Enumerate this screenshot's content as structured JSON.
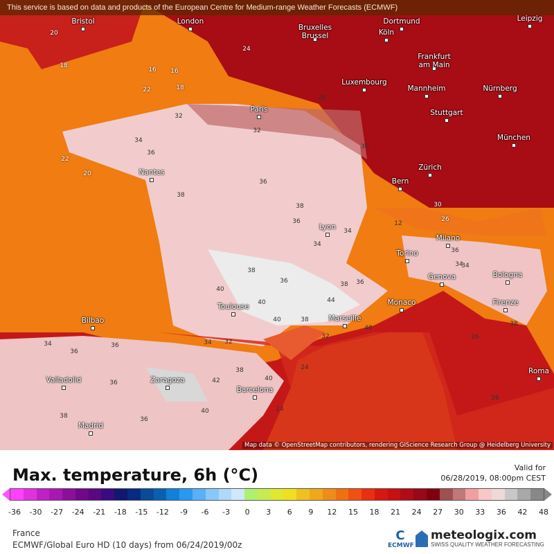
{
  "banner": "This service is based on data and products of the European Centre for Medium-range Weather Forecasts (ECMWF)",
  "cities": [
    "Bristol",
    "London",
    "Dortmund",
    "Leipzig",
    "Bruxelles\nBrussel",
    "Köln",
    "Frankfurt\nam Main",
    "Luxembourg",
    "Mannheim",
    "Nürnberg",
    "Paris",
    "Stuttgart",
    "München",
    "Nantes",
    "Zürich",
    "Bern",
    "Lyon",
    "Milano",
    "Torino",
    "Genova",
    "Bologna",
    "Toulouse",
    "Monaco",
    "Firenze",
    "Marseille",
    "Bilbao",
    "Valladolid",
    "Zaragoza",
    "Barcelona",
    "Roma",
    "Madrid"
  ],
  "temp_labels": [
    "20",
    "18",
    "16",
    "18",
    "24",
    "22",
    "32",
    "32",
    "34",
    "36",
    "38",
    "36",
    "38",
    "36",
    "34",
    "34",
    "38",
    "40",
    "40",
    "36",
    "38",
    "36",
    "40",
    "44",
    "38",
    "40",
    "32",
    "34",
    "36",
    "36",
    "42",
    "40",
    "38",
    "36",
    "40",
    "36",
    "38",
    "34",
    "32",
    "24",
    "24",
    "26",
    "34",
    "38",
    "26",
    "30",
    "28",
    "12",
    "36",
    "34",
    "30",
    "26",
    "16",
    "20",
    "22"
  ],
  "attribution": "Map data © OpenStreetMap contributors, rendering GIScience Research Group @ Heidelberg University",
  "legend": {
    "title": "Max. temperature, 6h (°C)",
    "valid_label": "Valid for",
    "valid_time": "06/28/2019, 08:00pm CEST",
    "ticks": [
      "-36",
      "-30",
      "-27",
      "-24",
      "-21",
      "-18",
      "-15",
      "-12",
      "-9",
      "-6",
      "-3",
      "0",
      "3",
      "6",
      "9",
      "12",
      "15",
      "18",
      "21",
      "24",
      "27",
      "30",
      "33",
      "36",
      "42",
      "48"
    ],
    "colors": [
      "#ff40ff",
      "#e030e0",
      "#c020c8",
      "#a818b0",
      "#8a1098",
      "#70088a",
      "#5a0880",
      "#3a0a80",
      "#101870",
      "#082a80",
      "#0a4a98",
      "#0a60b0",
      "#1080d8",
      "#2898f0",
      "#58b0f8",
      "#88c8f8",
      "#b0d8f8",
      "#d0e8fc",
      "#b0f070",
      "#c8ec50",
      "#e0e830",
      "#f0e020",
      "#f0c020",
      "#f0a818",
      "#f08c18",
      "#f07010",
      "#f05010",
      "#e83010",
      "#d81810",
      "#c81010",
      "#b00c18",
      "#980818",
      "#800010",
      "#a05050",
      "#c07878",
      "#f0a0a0",
      "#f8c8c8",
      "#f0d8d8",
      "#c8c8c8",
      "#a8a8a8",
      "#888888"
    ]
  },
  "footer": {
    "region": "France",
    "model": "ECMWF/Global Euro HD (10 days) from 06/24/2019/00z",
    "ecmwf": "ECMWF",
    "brand": "meteologix.com",
    "tagline": "SWISS QUALITY WEATHER FORECASTING"
  }
}
